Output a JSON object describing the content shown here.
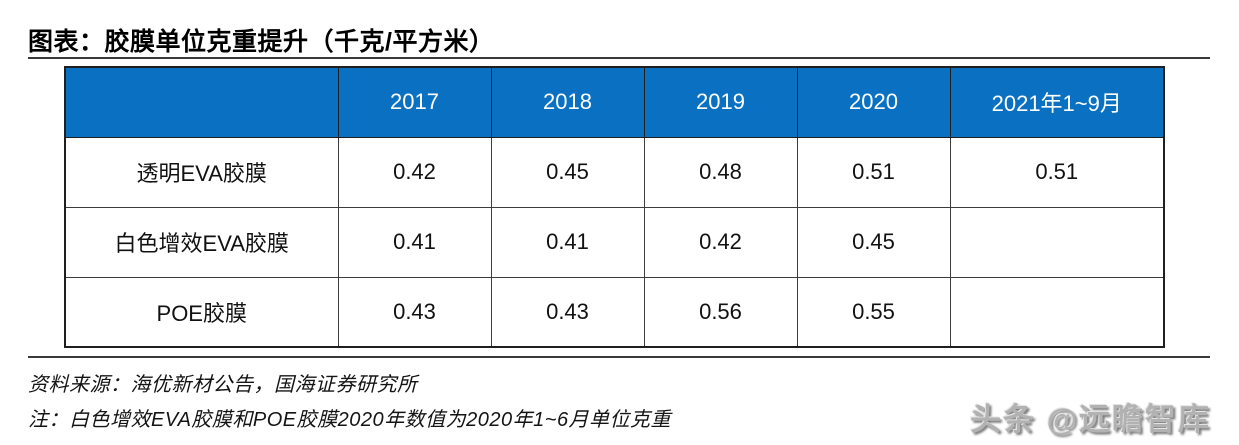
{
  "title": {
    "text": "图表：胶膜单位克重提升（千克/平方米）"
  },
  "colors": {
    "header_bg": "#0a71c2",
    "header_text": "#ffffff",
    "border": "#1f1f1f",
    "rule": "#3a3a3a",
    "watermark": "#b2b2b2"
  },
  "table": {
    "columns": [
      "",
      "2017",
      "2018",
      "2019",
      "2020",
      "2021年1~9月"
    ],
    "rows": [
      {
        "label": "透明EVA胶膜",
        "values": [
          "0.42",
          "0.45",
          "0.48",
          "0.51",
          "0.51"
        ]
      },
      {
        "label": "白色增效EVA胶膜",
        "values": [
          "0.41",
          "0.41",
          "0.42",
          "0.45",
          ""
        ]
      },
      {
        "label": "POE胶膜",
        "values": [
          "0.43",
          "0.43",
          "0.56",
          "0.55",
          ""
        ]
      }
    ]
  },
  "chart_data": {
    "type": "table",
    "title": "图表：胶膜单位克重提升（千克/平方米）",
    "categories": [
      "2017",
      "2018",
      "2019",
      "2020",
      "2021年1~9月"
    ],
    "series": [
      {
        "name": "透明EVA胶膜",
        "values": [
          0.42,
          0.45,
          0.48,
          0.51,
          0.51
        ]
      },
      {
        "name": "白色增效EVA胶膜",
        "values": [
          0.41,
          0.41,
          0.42,
          0.45,
          null
        ]
      },
      {
        "name": "POE胶膜",
        "values": [
          0.43,
          0.43,
          0.56,
          0.55,
          null
        ]
      }
    ]
  },
  "footer": {
    "source": "资料来源：海优新材公告，国海证券研究所",
    "note": "注：白色增效EVA胶膜和POE胶膜2020年数值为2020年1~6月单位克重"
  },
  "watermark": {
    "text": "头条 @远瞻智库"
  }
}
